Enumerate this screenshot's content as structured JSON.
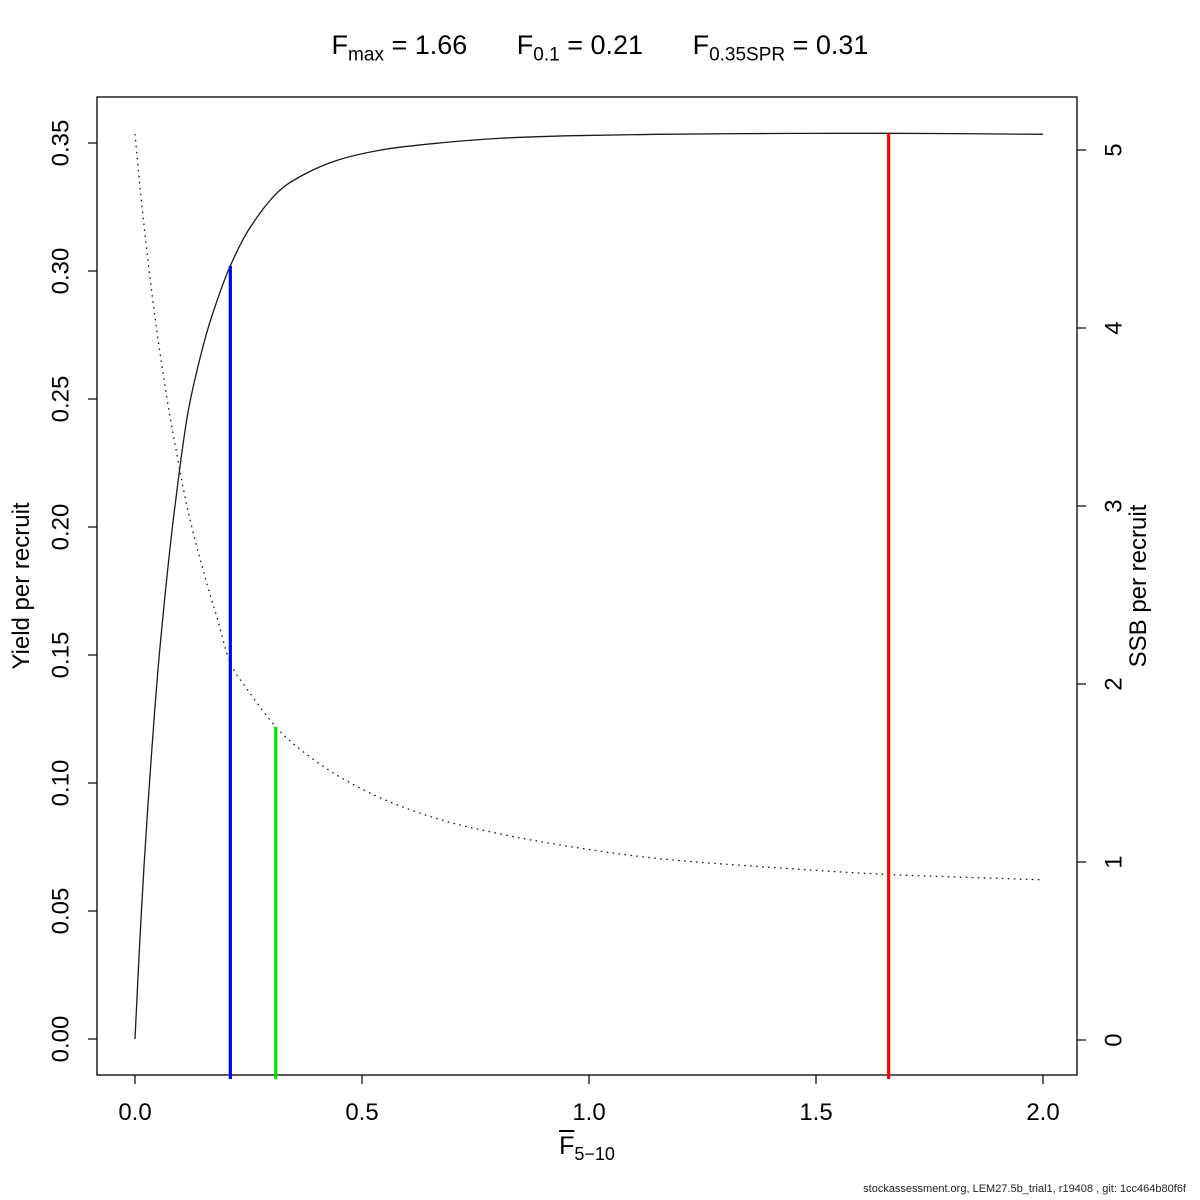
{
  "title": {
    "refs": [
      {
        "base": "F",
        "sub": "max",
        "eq": " = 1.66"
      },
      {
        "base": "F",
        "sub": "0.1",
        "eq": " = 0.21"
      },
      {
        "base": "F",
        "sub": "0.35SPR",
        "eq": " = 0.31"
      }
    ]
  },
  "axes": {
    "x": {
      "label_base": "F",
      "label_sub": "5−10",
      "ticks": [
        0,
        0.5,
        1.0,
        1.5,
        2.0
      ],
      "tick_labels": [
        "0.0",
        "0.5",
        "1.0",
        "1.5",
        "2.0"
      ]
    },
    "y_left": {
      "label": "Yield per recruit",
      "ticks": [
        0,
        0.05,
        0.1,
        0.15,
        0.2,
        0.25,
        0.3,
        0.35
      ],
      "tick_labels": [
        "0.00",
        "0.05",
        "0.10",
        "0.15",
        "0.20",
        "0.25",
        "0.30",
        "0.35"
      ]
    },
    "y_right": {
      "label": "SSB per recruit",
      "ticks": [
        0,
        1,
        2,
        3,
        4,
        5
      ],
      "tick_labels": [
        "0",
        "1",
        "2",
        "3",
        "4",
        "5"
      ]
    }
  },
  "footer": {
    "text": "stockassessment.org, LEM27.5b_trial1, r19408 , git: 1cc464b80f6f"
  },
  "chart_data": {
    "type": "line",
    "x_range": [
      0,
      2
    ],
    "y_left_range": [
      0,
      0.35
    ],
    "y_right_range": [
      0,
      5
    ],
    "grid": false,
    "legend": "none",
    "series": [
      {
        "name": "Yield per recruit",
        "axis": "left",
        "style": "solid",
        "color": "#1a1a1a",
        "x": [
          0,
          0.01,
          0.02,
          0.035,
          0.05,
          0.07,
          0.09,
          0.117,
          0.152,
          0.18,
          0.21,
          0.25,
          0.31,
          0.37,
          0.45,
          0.55,
          0.67,
          0.8,
          0.95,
          1.15,
          1.4,
          1.66,
          2.0
        ],
        "y": [
          0,
          0.036,
          0.068,
          0.108,
          0.143,
          0.18,
          0.211,
          0.245,
          0.272,
          0.288,
          0.302,
          0.316,
          0.33,
          0.3375,
          0.3435,
          0.3475,
          0.35,
          0.3518,
          0.3528,
          0.3534,
          0.3537,
          0.3538,
          0.3534
        ]
      },
      {
        "name": "SSB per recruit",
        "axis": "right",
        "style": "dotted",
        "color": "#1a1a1a",
        "x": [
          0,
          0.01,
          0.02,
          0.035,
          0.05,
          0.07,
          0.09,
          0.117,
          0.152,
          0.18,
          0.21,
          0.25,
          0.31,
          0.37,
          0.45,
          0.55,
          0.67,
          0.8,
          0.95,
          1.15,
          1.4,
          1.66,
          2.0
        ],
        "y": [
          5.09,
          4.82,
          4.57,
          4.24,
          3.95,
          3.61,
          3.32,
          2.97,
          2.62,
          2.38,
          2.12,
          1.96,
          1.76,
          1.62,
          1.48,
          1.35,
          1.24,
          1.16,
          1.09,
          1.02,
          0.97,
          0.93,
          0.9
        ]
      }
    ],
    "reference_lines": [
      {
        "name": "F0.1",
        "x": 0.21,
        "color": "#0000ff",
        "meets_series": 0
      },
      {
        "name": "F0.35SPR",
        "x": 0.31,
        "color": "#00e600",
        "meets_series": 1
      },
      {
        "name": "Fmax",
        "x": 1.66,
        "color": "#ff0000",
        "meets_series": 0
      }
    ]
  }
}
